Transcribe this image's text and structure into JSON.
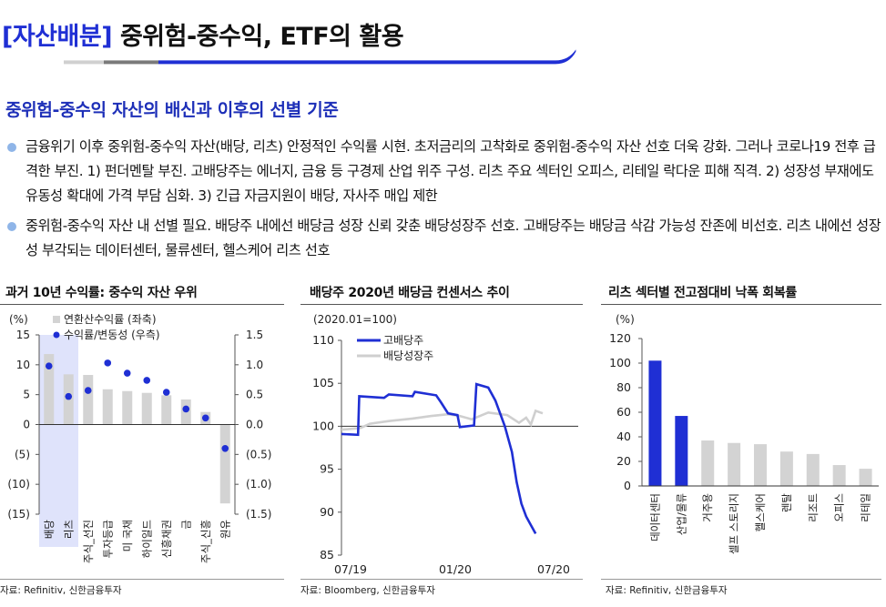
{
  "header": {
    "bracket": "[자산배분]",
    "title": " 중위험-중수익, ETF의 활용"
  },
  "section_title": "중위험-중수익 자산의 배신과 이후의 선별 기준",
  "bullets": [
    "금융위기 이후 중위험-중수익 자산(배당, 리츠) 안정적인 수익률 시현. 초저금리의 고착화로 중위험-중수익 자산 선호 더욱 강화. 그러나 코로나19 전후 급격한 부진. 1) 펀더멘탈 부진. 고배당주는 에너지, 금융 등 구경제 산업 위주 구성. 리츠 주요 섹터인 오피스, 리테일 락다운 피해 직격. 2) 성장성 부재에도 유동성 확대에 가격 부담 심화. 3) 긴급 자금지원이 배당, 자사주 매입 제한",
    "중위험-중수익 자산 내 선별 필요. 배당주 내에선 배당금 성장 신뢰 갖춘 배당성장주 선호. 고배당주는 배당금 삭감 가능성 잔존에 비선호. 리츠 내에선 성장성 부각되는 데이터센터, 물류센터, 헬스케어 리츠 선호"
  ],
  "panels": [
    {
      "title": "과거 10년 수익률: 중수익 자산 우위",
      "source": "자료: Refinitiv, 신한금융투자"
    },
    {
      "title": "배당주 2020년 배당금 컨센서스 추이",
      "source": "자료: Bloomberg, 신한금융투자"
    },
    {
      "title": "리츠 섹터별 전고점대비 낙폭 회복률",
      "source": "자료: Refinitiv, 신한금융투자"
    }
  ],
  "colors": {
    "accent": "#1f2fd4",
    "bar_gray": "#d3d3d3",
    "highlight": "#dfe3fb",
    "line_gray": "#cfcfcf"
  },
  "chart_data": [
    {
      "type": "bar",
      "unit_label": "(%)",
      "categories": [
        "배당",
        "리츠",
        "주식_선진",
        "투자등급",
        "미 국채",
        "하이일드",
        "신흥채권",
        "금",
        "주식_신흥",
        "원유"
      ],
      "series": [
        {
          "name": "연환산수익률 (좌축)",
          "type": "bar",
          "axis": "left",
          "values": [
            11.8,
            8.4,
            8.3,
            5.9,
            5.6,
            5.3,
            4.9,
            4.2,
            2.1,
            -13.2
          ]
        },
        {
          "name": "수익률/변동성 (우측)",
          "type": "scatter",
          "axis": "right",
          "values": [
            0.98,
            0.47,
            0.57,
            1.03,
            0.86,
            0.74,
            0.54,
            0.26,
            0.11,
            -0.4
          ]
        }
      ],
      "ylim": [
        -15,
        15
      ],
      "yticks": [
        "15",
        "10",
        "5",
        "0",
        "(5)",
        "(10)",
        "(15)"
      ],
      "y2lim": [
        -1.5,
        1.5
      ],
      "y2ticks": [
        "1.5",
        "1.0",
        "0.5",
        "0.0",
        "(0.5)",
        "(1.0)",
        "(1.5)"
      ],
      "highlight": [
        "배당",
        "리츠"
      ]
    },
    {
      "type": "line",
      "unit_label": "(2020.01=100)",
      "xticks": [
        "07/19",
        "01/20",
        "07/20"
      ],
      "ylim": [
        85,
        110
      ],
      "yticks": [
        "110",
        "105",
        "100",
        "95",
        "90",
        "85"
      ],
      "baseline": 100,
      "series": [
        {
          "name": "고배당주",
          "color": "#1f2fd4",
          "points": [
            [
              0,
              99.1
            ],
            [
              0.07,
              99.0
            ],
            [
              0.075,
              103.5
            ],
            [
              0.18,
              103.3
            ],
            [
              0.2,
              103.7
            ],
            [
              0.3,
              103.5
            ],
            [
              0.31,
              104.0
            ],
            [
              0.4,
              103.6
            ],
            [
              0.42,
              102.8
            ],
            [
              0.45,
              101.5
            ],
            [
              0.47,
              101.4
            ],
            [
              0.49,
              101.3
            ],
            [
              0.5,
              99.9
            ],
            [
              0.56,
              100.1
            ],
            [
              0.57,
              104.9
            ],
            [
              0.62,
              104.5
            ],
            [
              0.65,
              103.0
            ],
            [
              0.67,
              101.5
            ],
            [
              0.69,
              100.0
            ],
            [
              0.72,
              97.0
            ],
            [
              0.74,
              93.5
            ],
            [
              0.76,
              91.0
            ],
            [
              0.78,
              89.5
            ],
            [
              0.8,
              88.5
            ],
            [
              0.82,
              87.5
            ]
          ]
        },
        {
          "name": "배당성장주",
          "color": "#cfcfcf",
          "points": [
            [
              0,
              99.6
            ],
            [
              0.08,
              99.8
            ],
            [
              0.12,
              100.3
            ],
            [
              0.2,
              100.6
            ],
            [
              0.3,
              100.9
            ],
            [
              0.38,
              101.2
            ],
            [
              0.45,
              101.4
            ],
            [
              0.5,
              101.2
            ],
            [
              0.55,
              100.8
            ],
            [
              0.62,
              101.6
            ],
            [
              0.7,
              101.3
            ],
            [
              0.75,
              100.4
            ],
            [
              0.78,
              101.0
            ],
            [
              0.8,
              100.2
            ],
            [
              0.82,
              101.8
            ],
            [
              0.85,
              101.5
            ]
          ]
        }
      ]
    },
    {
      "type": "bar",
      "unit_label": "(%)",
      "categories": [
        "데이터센터",
        "산업/물류",
        "거주용",
        "셀프 스토리지",
        "헬스케어",
        "렌탈",
        "리조트",
        "오피스",
        "리테일"
      ],
      "values": [
        102,
        57,
        37,
        35,
        34,
        28,
        26,
        17,
        14
      ],
      "highlight": [
        "데이터센터",
        "산업/물류"
      ],
      "ylim": [
        0,
        120
      ],
      "yticks": [
        "120",
        "100",
        "80",
        "60",
        "40",
        "20",
        "0"
      ]
    }
  ]
}
